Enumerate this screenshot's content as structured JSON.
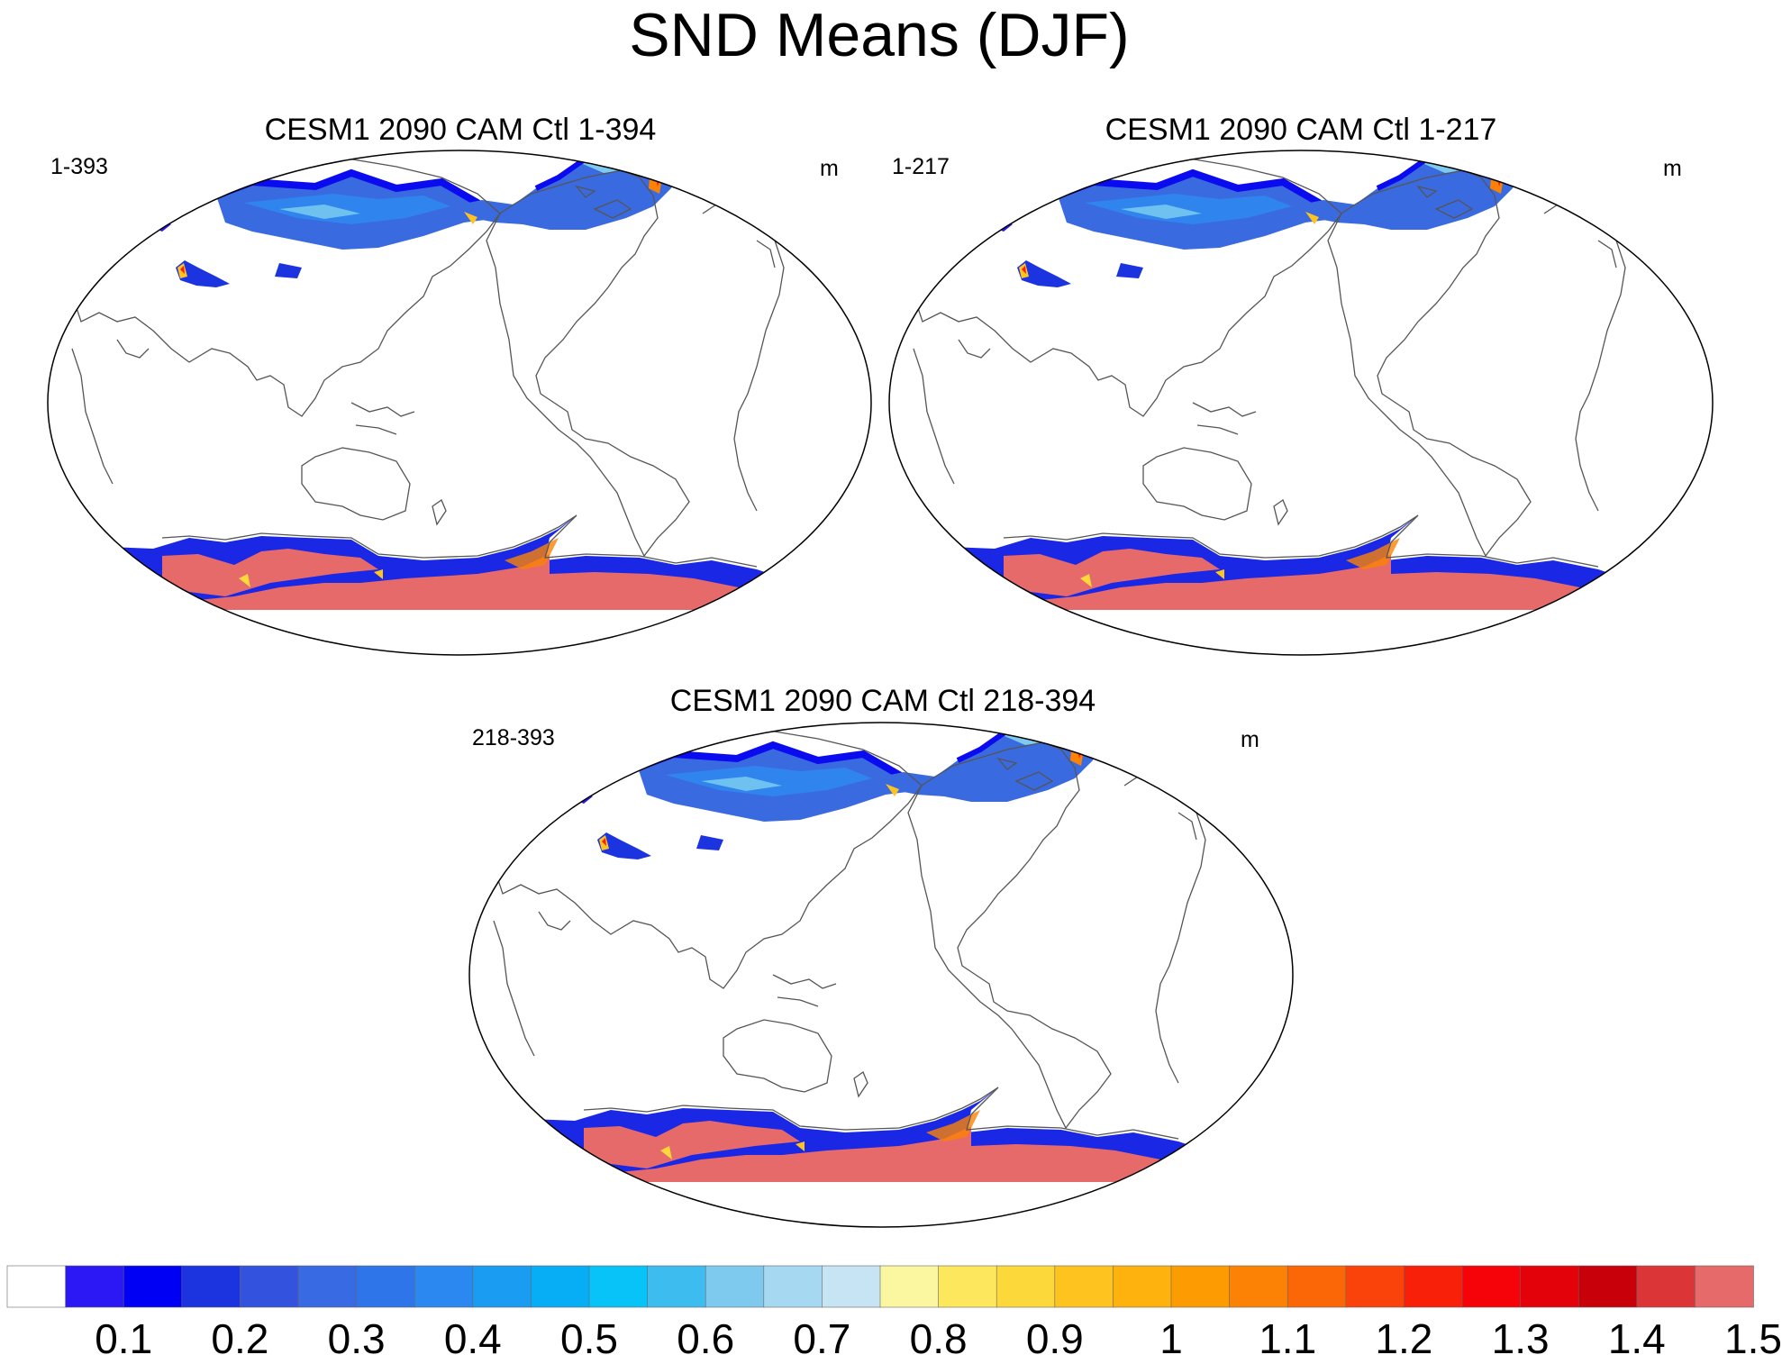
{
  "figure": {
    "title": "SND Means (DJF)"
  },
  "panels": [
    {
      "title": "CESM1 2090 CAM Ctl 1-394",
      "left_label": "1-393",
      "right_label": "m"
    },
    {
      "title": "CESM1 2090 CAM Ctl 1-217",
      "left_label": "1-217",
      "right_label": "m"
    },
    {
      "title": "CESM1 2090 CAM Ctl 218-394",
      "left_label": "218-393",
      "right_label": "m"
    }
  ],
  "colorbar": {
    "labels": [
      "0.1",
      "0.2",
      "0.3",
      "0.4",
      "0.5",
      "0.6",
      "0.7",
      "0.8",
      "0.9",
      "1",
      "1.1",
      "1.2",
      "1.3",
      "1.4",
      "1.5"
    ],
    "colors": [
      "#ffffff",
      "#2b18f5",
      "#0000f5",
      "#1c33e0",
      "#3353de",
      "#376ae3",
      "#2f75ea",
      "#2a88f0",
      "#1a9cf3",
      "#07aef6",
      "#08c3f7",
      "#3dbcf0",
      "#7ecaee",
      "#a7d8f2",
      "#c6e4f3",
      "#fbf7a0",
      "#fde85d",
      "#fdd83b",
      "#fec31f",
      "#fdb20e",
      "#fc9c02",
      "#fb8204",
      "#fb6606",
      "#fa430a",
      "#f9200a",
      "#f6030a",
      "#e4020a",
      "#c8000a",
      "#dc3538",
      "#e76a6a"
    ]
  },
  "colors": {
    "coastline": "#555555",
    "antarctica_deep": "#e76a6a",
    "background": "#ffffff"
  }
}
